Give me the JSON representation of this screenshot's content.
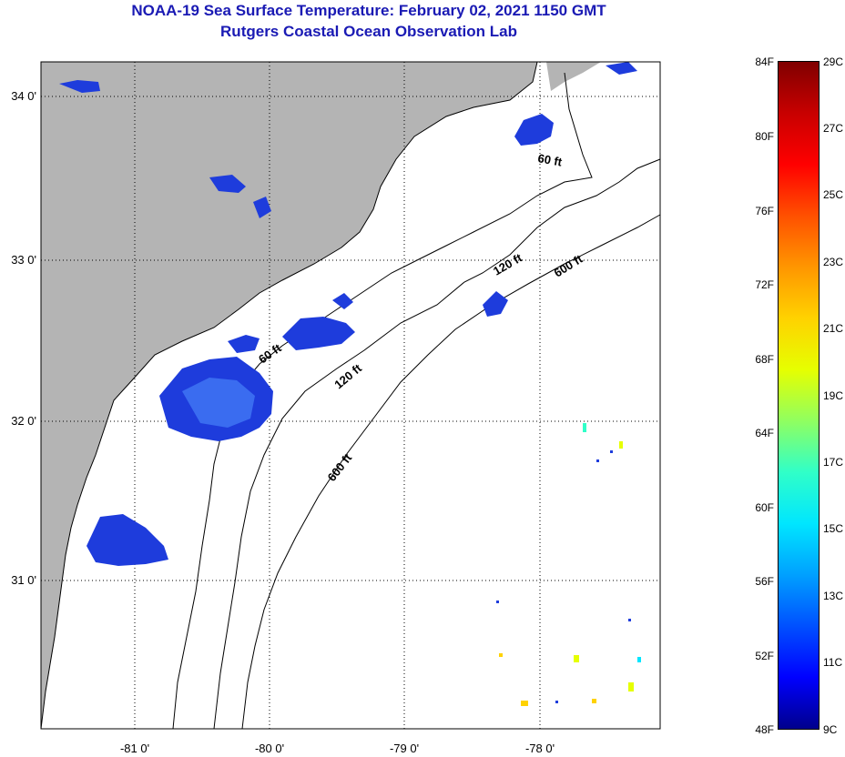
{
  "title": {
    "line1": "NOAA-19 Sea Surface Temperature:  February 02, 2021 1150 GMT",
    "line2": "Rutgers Coastal Ocean Observation Lab"
  },
  "map": {
    "lon_labels": [
      "-81 0'",
      "-80 0'",
      "-79 0'",
      "-78 0'"
    ],
    "lat_labels": [
      "34 0'",
      "33 0'",
      "32 0'",
      "31 0'"
    ],
    "isobath_labels": [
      "60 ft",
      "120 ft",
      "600 ft",
      "60 ft",
      "120 ft",
      "600 ft"
    ],
    "land_color": "#b4b4b4",
    "ocean_color": "#ffffff",
    "data_color_cold": "#1e3cdc",
    "data_color_warm": "#ffd200"
  },
  "colorbar": {
    "fahrenheit_labels": [
      "84F",
      "80F",
      "76F",
      "72F",
      "68F",
      "64F",
      "60F",
      "56F",
      "52F",
      "48F"
    ],
    "celsius_labels": [
      "29C",
      "27C",
      "25C",
      "23C",
      "21C",
      "19C",
      "17C",
      "15C",
      "13C",
      "11C",
      "9C"
    ],
    "range_f": [
      48,
      84
    ],
    "range_c": [
      9,
      29
    ],
    "colors": [
      "#00008c",
      "#0000ff",
      "#0050ff",
      "#00a0ff",
      "#00e6ff",
      "#30ffc8",
      "#90ff60",
      "#e6ff00",
      "#ffd200",
      "#ff9600",
      "#ff5000",
      "#ff0000",
      "#c80000",
      "#800000"
    ]
  }
}
